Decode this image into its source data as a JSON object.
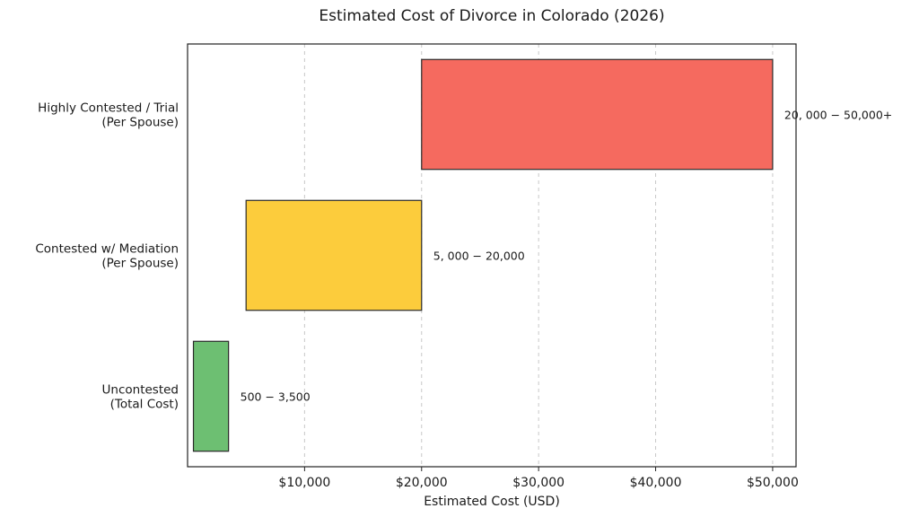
{
  "chart_data": {
    "type": "bar",
    "orientation": "horizontal",
    "title": "Estimated Cost of Divorce in Colorado (2026)",
    "xlabel": "Estimated Cost (USD)",
    "ylabel": "",
    "xlim": [
      0,
      52000
    ],
    "xticks": [
      10000,
      20000,
      30000,
      40000,
      50000
    ],
    "xtick_labels": [
      "$10,000",
      "$20,000",
      "$30,000",
      "$40,000",
      "$50,000"
    ],
    "grid": "vertical dashed",
    "legend": "none",
    "categories": [
      {
        "lines": [
          "Uncontested",
          "(Total Cost)"
        ],
        "start": 500,
        "end": 3500,
        "label": "500 − 3,500",
        "color": "#6dbf72"
      },
      {
        "lines": [
          "Contested w/ Mediation",
          "(Per Spouse)"
        ],
        "start": 5000,
        "end": 20000,
        "label": "5, 000 − 20,000",
        "color": "#fccc3c"
      },
      {
        "lines": [
          "Highly Contested / Trial",
          "(Per Spouse)"
        ],
        "start": 20000,
        "end": 50000,
        "label": "20, 000 − 50,000+",
        "color": "#f56a5f"
      }
    ]
  }
}
